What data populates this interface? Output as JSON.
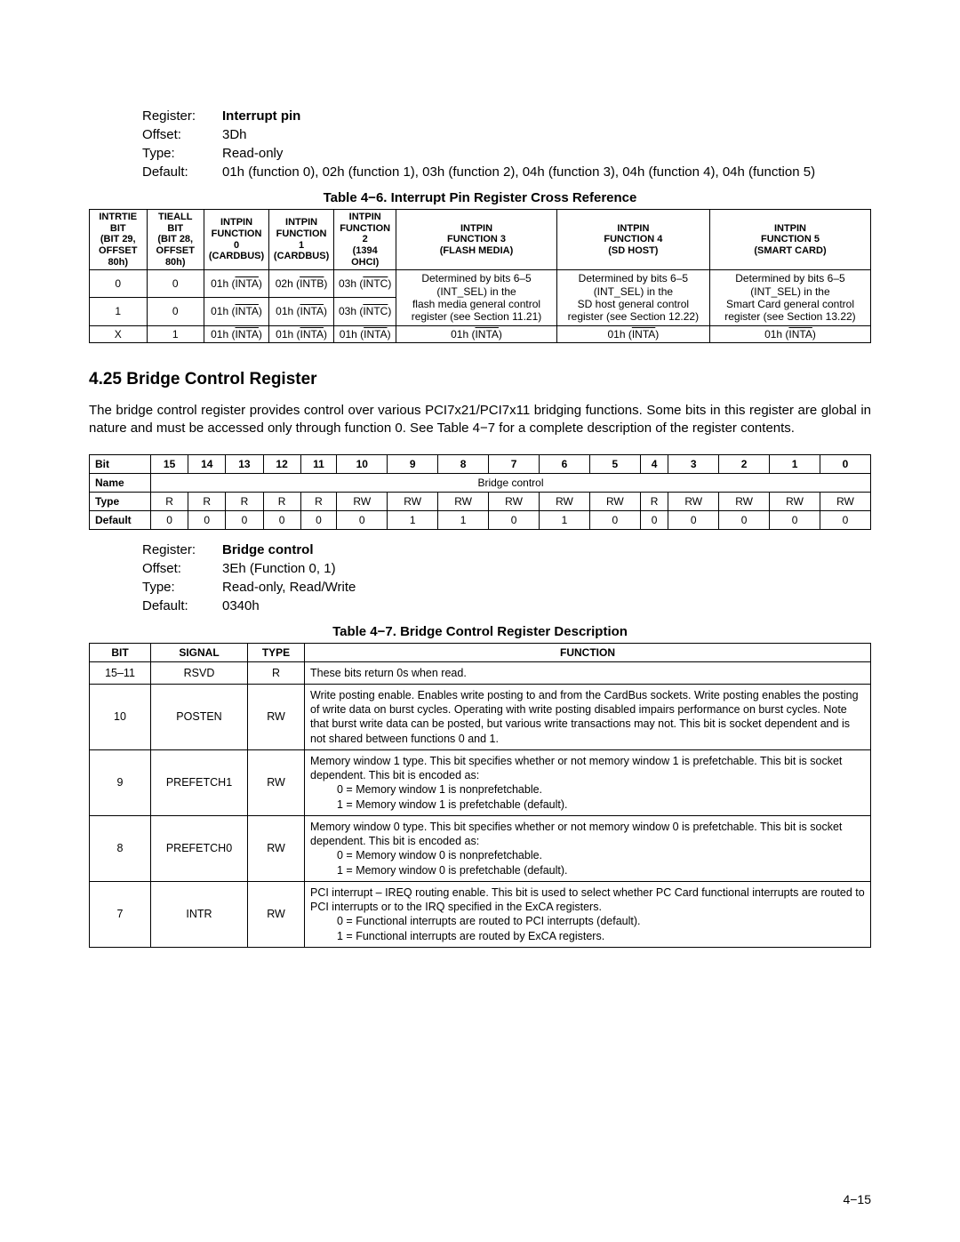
{
  "reg1": {
    "labels": {
      "register": "Register:",
      "offset": "Offset:",
      "type": "Type:",
      "default": "Default:"
    },
    "name": "Interrupt pin",
    "offset": "3Dh",
    "type": "Read-only",
    "default": "01h (function 0), 02h (function 1), 03h (function 2), 04h (function 3), 04h (function 4), 04h (function 5)"
  },
  "table46": {
    "caption": "Table 4−6.  Interrupt Pin Register Cross Reference",
    "headers": [
      "INTRTIE BIT\n(BIT 29,\nOFFSET 80h)",
      "TIEALL BIT\n(BIT 28,\nOFFSET 80h)",
      "INTPIN\nFUNCTION 0\n(CARDBUS)",
      "INTPIN\nFUNCTION 1\n(CARDBUS)",
      "INTPIN\nFUNCTION 2\n(1394 OHCI)",
      "INTPIN\nFUNCTION 3\n(FLASH MEDIA)",
      "INTPIN\nFUNCTION 4\n(SD HOST)",
      "INTPIN\nFUNCTION 5\n(SMART CARD)"
    ],
    "rows": [
      {
        "c": [
          "0",
          "0",
          "01h (|INTA|)",
          "02h (|INTB|)",
          "03h (|INTC|)",
          "Determined by bits 6–5 (INT_SEL) in the",
          "Determined by bits 6–5 (INT_SEL) in the",
          "Determined by bits 6–5 (INT_SEL) in the"
        ]
      },
      {
        "c": [
          "1",
          "0",
          "01h (|INTA|)",
          "01h (|INTA|)",
          "03h (|INTC|)",
          "flash media general control register (see Section 11.21)",
          "SD host general control register (see Section 12.22)",
          "Smart Card general control register (see Section 13.22)"
        ]
      },
      {
        "c": [
          "X",
          "1",
          "01h (|INTA|)",
          "01h (|INTA|)",
          "01h (|INTA|)",
          "01h (|INTA|)",
          "01h (|INTA|)",
          "01h (|INTA|)"
        ]
      }
    ]
  },
  "section": {
    "title": "4.25 Bridge Control Register",
    "body": "The bridge control register provides control over various PCI7x21/PCI7x11 bridging functions. Some bits in this register are global in nature and must be accessed only through function 0. See Table 4−7 for a complete description of the register contents."
  },
  "bitTable": {
    "rowLabels": {
      "bit": "Bit",
      "name": "Name",
      "type": "Type",
      "default": "Default"
    },
    "bits": [
      "15",
      "14",
      "13",
      "12",
      "11",
      "10",
      "9",
      "8",
      "7",
      "6",
      "5",
      "4",
      "3",
      "2",
      "1",
      "0"
    ],
    "name": "Bridge control",
    "types": [
      "R",
      "R",
      "R",
      "R",
      "R",
      "RW",
      "RW",
      "RW",
      "RW",
      "RW",
      "RW",
      "R",
      "RW",
      "RW",
      "RW",
      "RW"
    ],
    "defaults": [
      "0",
      "0",
      "0",
      "0",
      "0",
      "0",
      "1",
      "1",
      "0",
      "1",
      "0",
      "0",
      "0",
      "0",
      "0",
      "0"
    ]
  },
  "reg2": {
    "labels": {
      "register": "Register:",
      "offset": "Offset:",
      "type": "Type:",
      "default": "Default:"
    },
    "name": "Bridge control",
    "offset": "3Eh (Function 0, 1)",
    "type": "Read-only, Read/Write",
    "default": "0340h"
  },
  "table47": {
    "caption": "Table 4−7.  Bridge Control Register Description",
    "headers": [
      "BIT",
      "SIGNAL",
      "TYPE",
      "FUNCTION"
    ],
    "rows": [
      {
        "bit": "15–11",
        "signal": "RSVD",
        "type": "R",
        "func": "These bits return 0s when read."
      },
      {
        "bit": "10",
        "signal": "POSTEN",
        "type": "RW",
        "func": "Write posting enable. Enables write posting to and from the CardBus sockets. Write posting enables the posting of write data on burst cycles. Operating with write posting disabled impairs performance on burst cycles. Note that burst write data can be posted, but various write transactions may not. This bit is socket dependent and is not shared between functions 0 and 1."
      },
      {
        "bit": "9",
        "signal": "PREFETCH1",
        "type": "RW",
        "func": "Memory window 1 type. This bit specifies whether or not memory window 1 is prefetchable. This bit is socket dependent. This bit is encoded as:|IND|0 = Memory window 1 is nonprefetchable.|IND|1 = Memory window 1 is prefetchable (default)."
      },
      {
        "bit": "8",
        "signal": "PREFETCH0",
        "type": "RW",
        "func": "Memory window 0 type. This bit specifies whether or not memory window 0 is prefetchable. This bit is socket dependent. This bit is encoded as:|IND|0 = Memory window 0 is nonprefetchable.|IND|1 = Memory window 0 is prefetchable (default)."
      },
      {
        "bit": "7",
        "signal": "INTR",
        "type": "RW",
        "func": "PCI interrupt – IREQ routing enable. This bit is used to select whether PC Card functional interrupts are routed to PCI interrupts or to the IRQ specified in the ExCA registers.|IND|0 = Functional interrupts are routed to PCI interrupts (default).|IND|1 = Functional interrupts are routed by ExCA registers."
      }
    ]
  },
  "pageNum": "4−15"
}
